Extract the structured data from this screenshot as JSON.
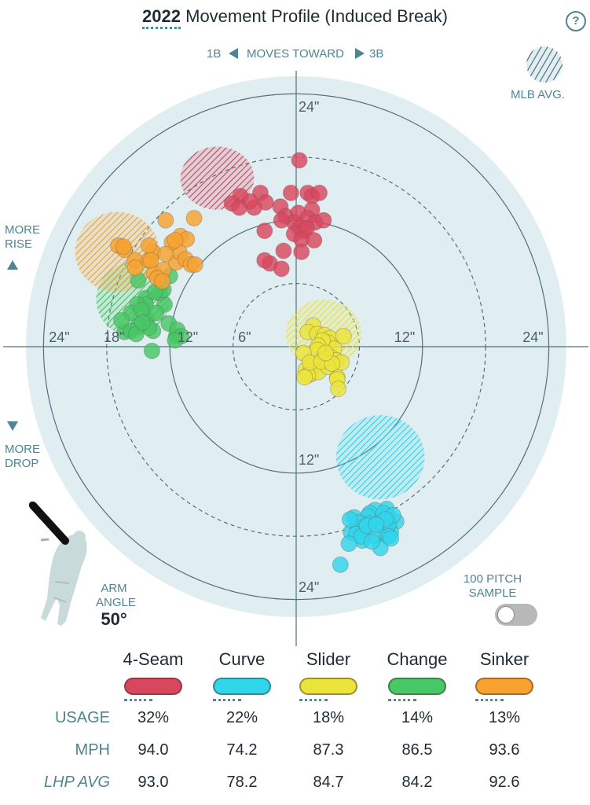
{
  "header": {
    "year": "2022",
    "title": "Movement Profile (Induced Break)",
    "help_icon": "?"
  },
  "direction": {
    "left": "1B",
    "center": "MOVES TOWARD",
    "right": "3B"
  },
  "mlb_avg_label": "MLB AVG.",
  "side_labels": {
    "rise": "MORE RISE",
    "drop": "MORE DROP"
  },
  "arm": {
    "label": "ARM ANGLE",
    "value": "50°"
  },
  "sample_toggle": {
    "label": "100 PITCH SAMPLE",
    "state": "off"
  },
  "chart_data": {
    "type": "scatter",
    "title": "Movement Profile (Induced Break)",
    "units": "inches",
    "ring_labels": [
      "6\"",
      "12\"",
      "18\"",
      "24\""
    ],
    "xlim": [
      -26,
      26
    ],
    "ylim": [
      -26,
      26
    ],
    "series": [
      {
        "name": "4-Seam",
        "color": "#d9475e",
        "avg_zone": {
          "cx": -7.5,
          "cy": 16,
          "rx": 3.5,
          "ry": 3
        },
        "points": [
          [
            0.3,
            17.7
          ],
          [
            -0.5,
            14.6
          ],
          [
            1.1,
            14.6
          ],
          [
            1.5,
            14.3
          ],
          [
            2.2,
            14.6
          ],
          [
            -3.4,
            14.6
          ],
          [
            -5.3,
            14.3
          ],
          [
            -2.9,
            13.7
          ],
          [
            -4.0,
            13.2
          ],
          [
            -4.4,
            13.8
          ],
          [
            -1.5,
            13.3
          ],
          [
            -1.0,
            12.4
          ],
          [
            0.2,
            12.7
          ],
          [
            1.5,
            13.0
          ],
          [
            1.1,
            12.2
          ],
          [
            -0.2,
            11.8
          ],
          [
            -1.4,
            12.0
          ],
          [
            1.8,
            11.8
          ],
          [
            2.6,
            12.0
          ],
          [
            0.3,
            11.3
          ],
          [
            0.7,
            11.0
          ],
          [
            1.0,
            11.2
          ],
          [
            -6.1,
            13.6
          ],
          [
            -5.4,
            13.2
          ],
          [
            -3.0,
            11.0
          ],
          [
            -0.2,
            10.7
          ],
          [
            0.5,
            10.2
          ],
          [
            1.7,
            10.1
          ],
          [
            -1.2,
            9.1
          ],
          [
            0.5,
            9.0
          ],
          [
            -2.5,
            7.9
          ],
          [
            -1.4,
            7.4
          ],
          [
            -3.0,
            8.2
          ]
        ]
      },
      {
        "name": "Curve",
        "color": "#31d6ea",
        "avg_zone": {
          "cx": 8,
          "cy": -10.5,
          "rx": 4.2,
          "ry": 4
        },
        "points": [
          [
            8.6,
            -15.4
          ],
          [
            7.5,
            -15.5
          ],
          [
            7.0,
            -15.8
          ],
          [
            6.8,
            -16.1
          ],
          [
            8.7,
            -16.1
          ],
          [
            9.5,
            -16.6
          ],
          [
            7.9,
            -16.7
          ],
          [
            6.9,
            -16.8
          ],
          [
            5.5,
            -16.2
          ],
          [
            5.9,
            -16.7
          ],
          [
            5.2,
            -17.6
          ],
          [
            6.0,
            -17.2
          ],
          [
            5.1,
            -16.4
          ],
          [
            6.5,
            -17.3
          ],
          [
            7.5,
            -18.0
          ],
          [
            8.6,
            -17.8
          ],
          [
            9.0,
            -17.6
          ],
          [
            8.8,
            -16.8
          ],
          [
            8.3,
            -15.8
          ],
          [
            9.2,
            -16.0
          ],
          [
            5.7,
            -17.8
          ],
          [
            6.3,
            -18.4
          ],
          [
            8.0,
            -19.1
          ],
          [
            6.2,
            -18.0
          ],
          [
            8.5,
            -16.4
          ],
          [
            4.2,
            -20.7
          ],
          [
            5.0,
            -18.7
          ],
          [
            7.2,
            -18.5
          ],
          [
            6.7,
            -17.0
          ],
          [
            8.8,
            -18.0
          ],
          [
            7.6,
            -16.9
          ],
          [
            9.0,
            -18.2
          ]
        ]
      },
      {
        "name": "Slider",
        "color": "#ebe43a",
        "avg_zone": {
          "cx": 2.6,
          "cy": 1.2,
          "rx": 3.6,
          "ry": 3.3
        },
        "points": [
          [
            1.6,
            2.0
          ],
          [
            1.1,
            1.4
          ],
          [
            2.0,
            1.2
          ],
          [
            2.7,
            1.1
          ],
          [
            3.2,
            0.8
          ],
          [
            4.5,
            1.0
          ],
          [
            3.0,
            0.4
          ],
          [
            3.6,
            -0.2
          ],
          [
            2.5,
            0.6
          ],
          [
            2.1,
            0.1
          ],
          [
            2.0,
            -0.3
          ],
          [
            0.7,
            -0.6
          ],
          [
            2.6,
            -1.2
          ],
          [
            3.3,
            -1.0
          ],
          [
            3.8,
            -1.3
          ],
          [
            4.3,
            -1.5
          ],
          [
            1.6,
            -1.8
          ],
          [
            1.4,
            -2.6
          ],
          [
            2.1,
            -2.4
          ],
          [
            0.9,
            -2.2
          ],
          [
            1.1,
            -2.7
          ],
          [
            3.9,
            -2.9
          ],
          [
            3.0,
            -1.9
          ],
          [
            1.3,
            -1.5
          ],
          [
            2.4,
            -1.4
          ],
          [
            3.4,
            -1.6
          ],
          [
            0.8,
            -2.9
          ],
          [
            2.8,
            -0.6
          ],
          [
            3.9,
            -3.1
          ],
          [
            4.0,
            -4.0
          ]
        ]
      },
      {
        "name": "Change",
        "color": "#47c765",
        "avg_zone": {
          "cx": -15.5,
          "cy": 4.5,
          "rx": 3.5,
          "ry": 3.5
        },
        "points": [
          [
            -15.0,
            6.3
          ],
          [
            -14.3,
            4.6
          ],
          [
            -12.5,
            4.0
          ],
          [
            -13.0,
            5.1
          ],
          [
            -12.0,
            6.7
          ],
          [
            -14.3,
            4.0
          ],
          [
            -15.1,
            4.0
          ],
          [
            -14.2,
            2.6
          ],
          [
            -15.7,
            3.2
          ],
          [
            -13.6,
            1.5
          ],
          [
            -14.0,
            1.8
          ],
          [
            -16.3,
            1.4
          ],
          [
            -12.1,
            2.2
          ],
          [
            -13.3,
            3.2
          ],
          [
            -12.6,
            5.4
          ],
          [
            -13.4,
            5.2
          ],
          [
            -14.7,
            3.5
          ],
          [
            -15.0,
            2.0
          ],
          [
            -11.4,
            1.0
          ],
          [
            -11.3,
            1.6
          ],
          [
            -10.9,
            1.0
          ],
          [
            -11.5,
            0.6
          ],
          [
            -15.7,
            1.5
          ],
          [
            -16.6,
            2.5
          ],
          [
            -15.2,
            1.2
          ],
          [
            -14.6,
            2.3
          ],
          [
            -13.7,
            -0.4
          ]
        ]
      },
      {
        "name": "Sinker",
        "color": "#f7a22e",
        "avg_zone": {
          "cx": -17,
          "cy": 9,
          "rx": 4,
          "ry": 3.8
        },
        "points": [
          [
            -16.9,
            9.6
          ],
          [
            -16.3,
            9.2
          ],
          [
            -15.3,
            8.2
          ],
          [
            -14.0,
            8.2
          ],
          [
            -13.6,
            9.0
          ],
          [
            -14.0,
            9.6
          ],
          [
            -15.3,
            7.5
          ],
          [
            -13.5,
            7.0
          ],
          [
            -12.6,
            7.3
          ],
          [
            -11.4,
            8.0
          ],
          [
            -11.1,
            9.0
          ],
          [
            -11.8,
            9.9
          ],
          [
            -10.5,
            8.3
          ],
          [
            -10.0,
            7.8
          ],
          [
            -9.6,
            7.8
          ],
          [
            -11.0,
            10.5
          ],
          [
            -10.4,
            10.2
          ],
          [
            -12.4,
            12.0
          ],
          [
            -9.7,
            12.2
          ],
          [
            -16.4,
            9.5
          ],
          [
            -13.2,
            6.5
          ],
          [
            -12.7,
            6.2
          ],
          [
            -11.5,
            10.1
          ],
          [
            -12.4,
            8.8
          ],
          [
            -13.8,
            8.2
          ]
        ]
      }
    ]
  },
  "legend": [
    {
      "name": "4-Seam",
      "color": "#d9475e",
      "usage": "32%",
      "mph": "94.0",
      "lhp_avg": "93.0"
    },
    {
      "name": "Curve",
      "color": "#31d6ea",
      "usage": "22%",
      "mph": "74.2",
      "lhp_avg": "78.2"
    },
    {
      "name": "Slider",
      "color": "#ebe43a",
      "usage": "18%",
      "mph": "87.3",
      "lhp_avg": "84.7"
    },
    {
      "name": "Change",
      "color": "#47c765",
      "usage": "14%",
      "mph": "86.5",
      "lhp_avg": "84.2"
    },
    {
      "name": "Sinker",
      "color": "#f7a22e",
      "usage": "13%",
      "mph": "93.6",
      "lhp_avg": "92.6"
    }
  ],
  "row_labels": {
    "usage": "USAGE",
    "mph": "MPH",
    "lhp_avg": "LHP AVG"
  },
  "colors": {
    "accent": "#4f8493",
    "chart_bg": "#e0eef2",
    "ring": "#52707b"
  }
}
